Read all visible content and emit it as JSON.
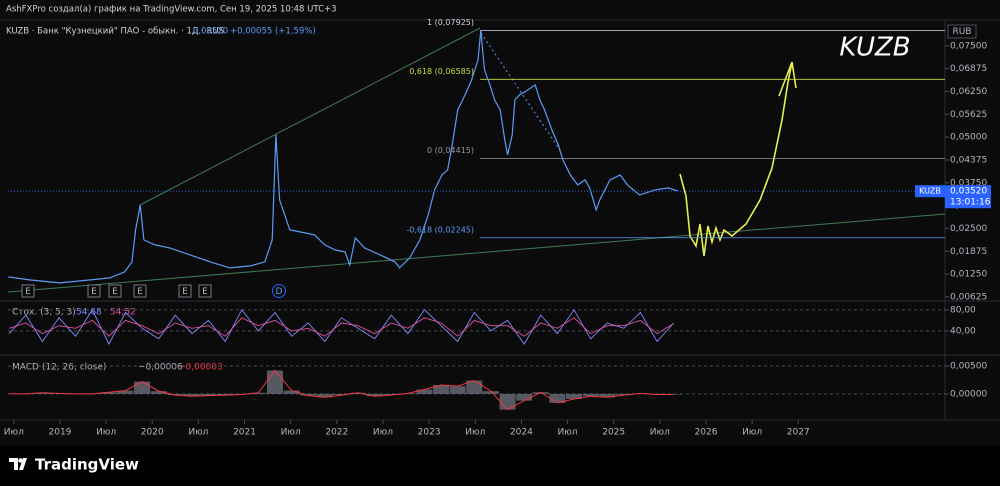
{
  "header": "AshFXPro создал(а) график на TradingView.com, Сен 19, 2025 10:48 UTC+3",
  "brand": "TradingView",
  "events": [
    "E",
    "E",
    "E",
    "E",
    "E",
    "E",
    "D"
  ],
  "chart_data": [
    {
      "type": "line",
      "title": "KUZB · Банк \"Кузнецкий\" ПАО - обыкн. · 1Д · RUS",
      "last_label": "0,03520",
      "change_label": "+0,00055 (+1,59%)",
      "watermark": "KUZB",
      "currency": "RUB",
      "color": "#5b9cf6",
      "x": [
        2018.44,
        2018.67,
        2019.0,
        2019.33,
        2019.54,
        2019.7,
        2019.78,
        2019.82,
        2019.87,
        2019.91,
        2020.03,
        2020.19,
        2020.41,
        2020.63,
        2020.84,
        2021.06,
        2021.22,
        2021.3,
        2021.34,
        2021.38,
        2021.49,
        2021.6,
        2021.76,
        2021.87,
        2021.98,
        2022.09,
        2022.14,
        2022.2,
        2022.3,
        2022.47,
        2022.63,
        2022.68,
        2022.79,
        2022.9,
        2022.99,
        2023.06,
        2023.14,
        2023.2,
        2023.25,
        2023.31,
        2023.39,
        2023.46,
        2023.53,
        2023.56,
        2023.6,
        2023.66,
        2023.71,
        2023.77,
        2023.82,
        2023.85,
        2023.9,
        2023.93,
        2023.98,
        2024.07,
        2024.15,
        2024.2,
        2024.25,
        2024.33,
        2024.4,
        2024.45,
        2024.53,
        2024.61,
        2024.69,
        2024.74,
        2024.81,
        2024.85,
        2024.96,
        2025.07,
        2025.15,
        2025.28,
        2025.45,
        2025.59,
        2025.7
      ],
      "values": [
        0.01173,
        0.01091,
        0.01009,
        0.01091,
        0.01146,
        0.0131,
        0.01584,
        0.0246,
        0.03145,
        0.02186,
        0.02049,
        0.01967,
        0.01776,
        0.01584,
        0.01419,
        0.01474,
        0.01584,
        0.02186,
        0.05062,
        0.03282,
        0.0246,
        0.02405,
        0.02323,
        0.02049,
        0.01912,
        0.01858,
        0.01502,
        0.02241,
        0.01967,
        0.01776,
        0.01584,
        0.01419,
        0.01693,
        0.02186,
        0.02871,
        0.03556,
        0.03967,
        0.04104,
        0.04788,
        0.05747,
        0.06158,
        0.06569,
        0.07117,
        0.07925,
        0.06843,
        0.06432,
        0.06021,
        0.05747,
        0.04925,
        0.04514,
        0.05062,
        0.06021,
        0.06158,
        0.06295,
        0.06432,
        0.06021,
        0.05747,
        0.05199,
        0.04788,
        0.04378,
        0.03967,
        0.03693,
        0.0383,
        0.03611,
        0.03008,
        0.03282,
        0.0383,
        0.03967,
        0.03693,
        0.03419,
        0.03556,
        0.03611,
        0.0352
      ],
      "xlim": [
        2018.437,
        2028.59
      ],
      "ylim": [
        0.0054,
        0.0799
      ],
      "xticks": [
        {
          "value": 2018.5,
          "label": "Июл"
        },
        2019,
        {
          "value": 2019.5,
          "label": "Июл"
        },
        2020,
        {
          "value": 2020.5,
          "label": "Июл"
        },
        2021,
        {
          "value": 2021.5,
          "label": "Июл"
        },
        2022,
        {
          "value": 2022.5,
          "label": "Июл"
        },
        2023,
        {
          "value": 2023.5,
          "label": "Июл"
        },
        2024,
        {
          "value": 2024.5,
          "label": "Июл"
        },
        2025,
        {
          "value": 2025.5,
          "label": "Июл"
        },
        2026,
        {
          "value": 2026.5,
          "label": "Июл"
        },
        2027
      ],
      "yticks": [
        {
          "value": 0.075,
          "label": "0,07500"
        },
        {
          "value": 0.06875,
          "label": "0,06875"
        },
        {
          "value": 0.0625,
          "label": "0,06250"
        },
        {
          "value": 0.05625,
          "label": "0,05625"
        },
        {
          "value": 0.05,
          "label": "0,05000"
        },
        {
          "value": 0.04375,
          "label": "0,04375"
        },
        {
          "value": 0.0375,
          "label": "0,03750"
        },
        {
          "value": 0.03125,
          "label": "0,03125"
        },
        {
          "value": 0.025,
          "label": "0,02500"
        },
        {
          "value": 0.01875,
          "label": "0,01875"
        },
        {
          "value": 0.0125,
          "label": "0,01250"
        },
        {
          "value": 0.00625,
          "label": "0,00625"
        }
      ],
      "fib_levels": [
        {
          "label": "1 (0,07925)",
          "value": 0.07925,
          "color": "#d1d4dc"
        },
        {
          "label": "0,618 (0,06585)",
          "value": 0.06585,
          "color": "#cddc39"
        },
        {
          "label": "0 (0,04415)",
          "value": 0.04415,
          "color": "#9598a1"
        },
        {
          "label": "-0,618 (0,02245)",
          "value": 0.02245,
          "color": "#5b9cf6"
        }
      ],
      "price_tag": {
        "symbol": "KUZB",
        "value": 0.0352,
        "countdown": "13:01:16",
        "color": "#2962ff"
      }
    },
    {
      "type": "line",
      "title": "Стох. (3, 5, 3)",
      "legend_values": [
        "54,68",
        "54,52"
      ],
      "x": [
        2018.45,
        2018.63,
        2018.81,
        2018.99,
        2019.17,
        2019.35,
        2019.53,
        2019.71,
        2019.89,
        2020.07,
        2020.25,
        2020.43,
        2020.61,
        2020.79,
        2020.97,
        2021.15,
        2021.33,
        2021.51,
        2021.69,
        2021.87,
        2022.05,
        2022.23,
        2022.41,
        2022.59,
        2022.77,
        2022.95,
        2023.13,
        2023.31,
        2023.49,
        2023.67,
        2023.85,
        2024.03,
        2024.21,
        2024.39,
        2024.57,
        2024.75,
        2024.93,
        2025.11,
        2025.29,
        2025.47,
        2025.65
      ],
      "series": [
        {
          "color": "#7b8cff",
          "values": [
            35,
            70,
            20,
            65,
            30,
            80,
            15,
            75,
            45,
            25,
            70,
            35,
            60,
            20,
            80,
            40,
            75,
            30,
            55,
            20,
            65,
            45,
            25,
            70,
            35,
            80,
            50,
            20,
            75,
            40,
            60,
            15,
            70,
            35,
            80,
            25,
            55,
            45,
            75,
            20,
            55
          ]
        },
        {
          "color": "#e0529c",
          "values": [
            45,
            55,
            35,
            50,
            45,
            60,
            30,
            60,
            50,
            35,
            55,
            45,
            50,
            30,
            65,
            50,
            60,
            40,
            45,
            30,
            55,
            50,
            35,
            55,
            45,
            65,
            55,
            30,
            60,
            50,
            50,
            30,
            55,
            45,
            65,
            35,
            50,
            50,
            60,
            35,
            54
          ]
        }
      ],
      "xlim": [
        2018.437,
        2028.59
      ],
      "ylim": [
        0,
        93
      ],
      "yticks": [
        {
          "value": 80,
          "label": "80,00"
        },
        {
          "value": 40,
          "label": "40,00"
        }
      ]
    },
    {
      "type": "bar",
      "title": "MACD (12, 26, close)",
      "legend_values": [
        "−0,00006",
        "−0,00003"
      ],
      "legend_colors": [
        "#b2b5be",
        "#f23645"
      ],
      "color": "#6a6d78",
      "line_color": "#f23645",
      "x": [
        2018.45,
        2018.63,
        2018.81,
        2018.99,
        2019.17,
        2019.35,
        2019.53,
        2019.71,
        2019.89,
        2020.07,
        2020.25,
        2020.43,
        2020.61,
        2020.79,
        2020.97,
        2021.15,
        2021.33,
        2021.51,
        2021.69,
        2021.87,
        2022.05,
        2022.23,
        2022.41,
        2022.59,
        2022.77,
        2022.95,
        2023.13,
        2023.31,
        2023.49,
        2023.67,
        2023.85,
        2024.03,
        2024.21,
        2024.39,
        2024.57,
        2024.75,
        2024.93,
        2025.11,
        2025.29,
        2025.47,
        2025.65
      ],
      "values": [
        0,
        0,
        0.0002,
        0.0001,
        0,
        0,
        0.0003,
        0.0006,
        0.0022,
        0.0005,
        -0.0002,
        -0.0004,
        -0.0003,
        -0.0002,
        -0.0001,
        0.0002,
        0.0042,
        0.0006,
        -0.0003,
        -0.0006,
        -0.0002,
        0.0002,
        -0.0004,
        -0.0002,
        0.0001,
        0.0008,
        0.0016,
        0.0014,
        0.0024,
        0.0005,
        -0.0028,
        -0.0012,
        0.0003,
        -0.0016,
        -0.0009,
        -0.0004,
        -0.0006,
        -0.0002,
        0.0001,
        -0.0001,
        -0.0001
      ],
      "xlim": [
        2018.437,
        2028.59
      ],
      "ylim": [
        -0.0043,
        0.0066
      ],
      "yticks": [
        {
          "value": 0.005,
          "label": "0,00500"
        },
        {
          "value": 0,
          "label": "0,00000"
        }
      ]
    }
  ]
}
